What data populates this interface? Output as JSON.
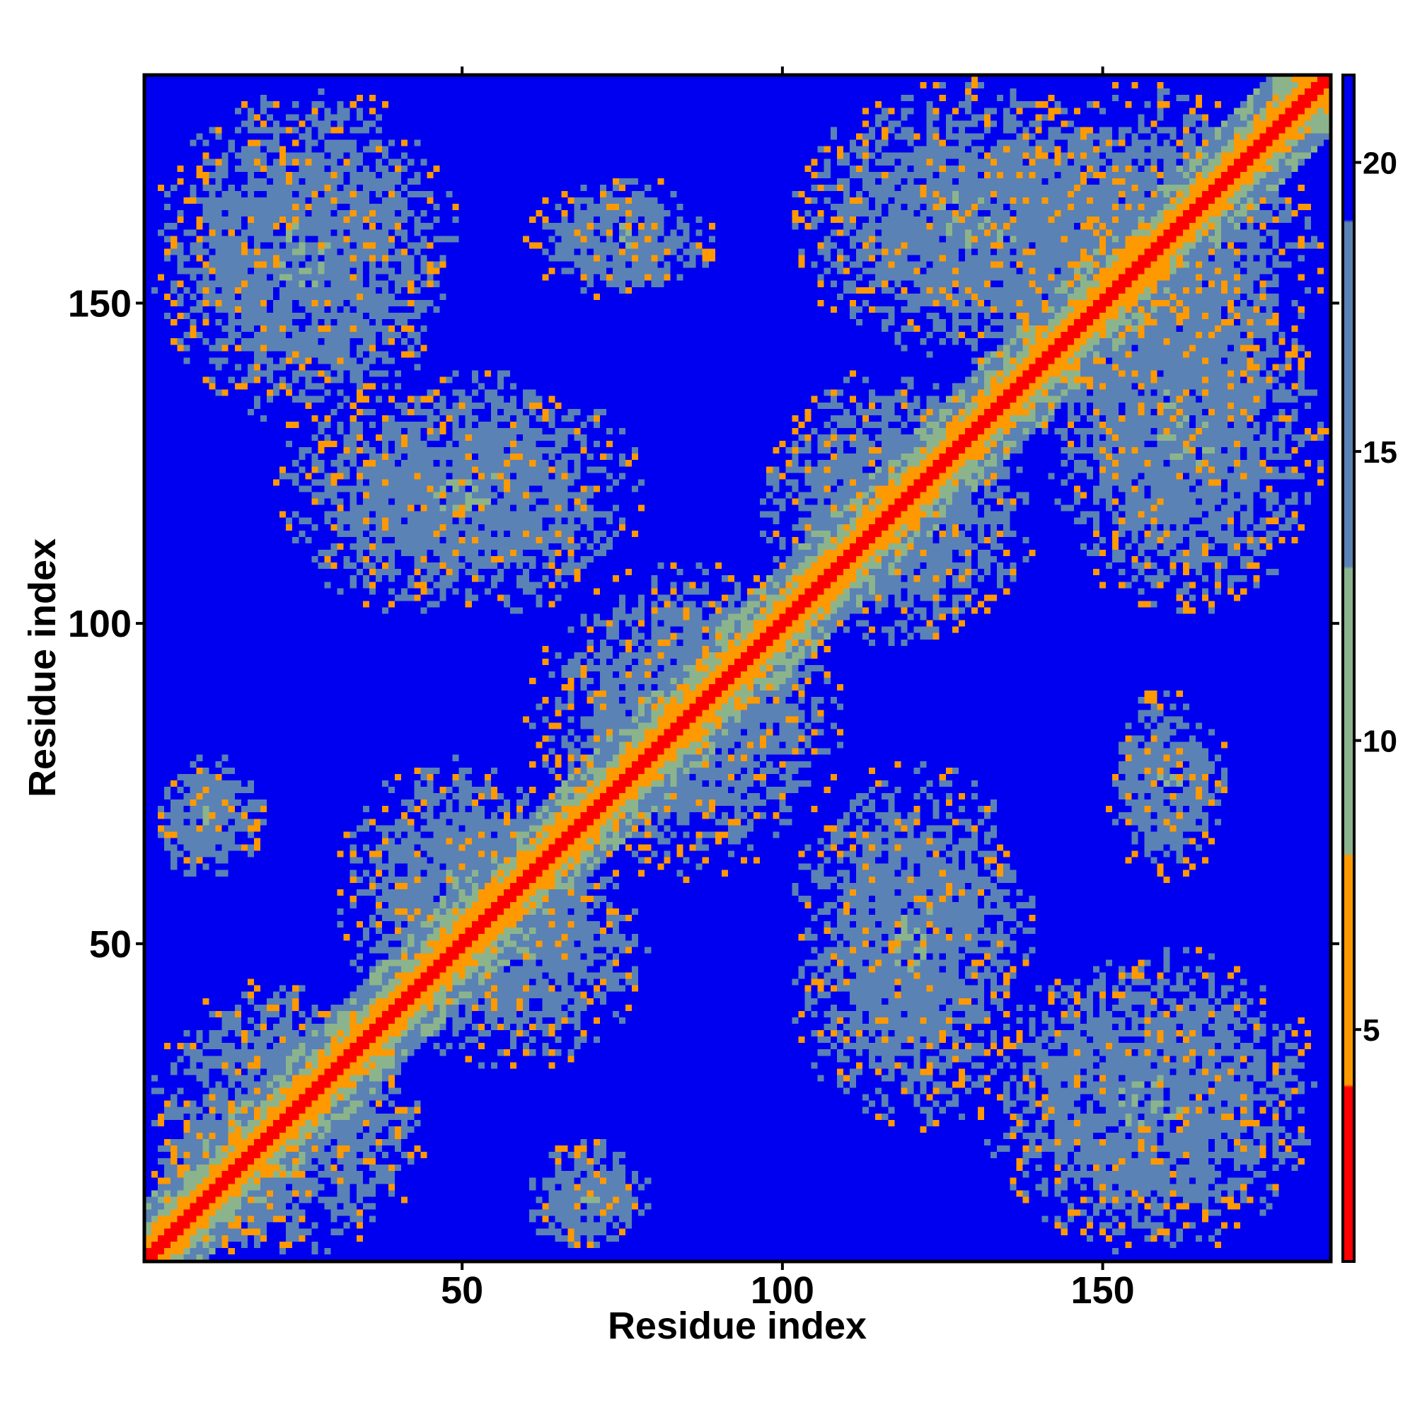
{
  "chart_data": {
    "type": "heatmap",
    "title": "",
    "xlabel": "Residue index",
    "ylabel": "Residue index",
    "n_residues": 185,
    "xlim": [
      1,
      185
    ],
    "ylim": [
      1,
      185
    ],
    "x_ticks": [
      50,
      100,
      150
    ],
    "y_ticks": [
      50,
      100,
      150
    ],
    "x_tick_labels": [
      "50",
      "100",
      "150"
    ],
    "y_tick_labels": [
      "50",
      "100",
      "150"
    ],
    "colorbar": {
      "range": [
        1,
        21.5
      ],
      "ticks": [
        5,
        10,
        15,
        20
      ],
      "tick_labels": [
        "5",
        "10",
        "15",
        "20"
      ],
      "placement": "right"
    },
    "colors": {
      "near": "#ff0000",
      "mid": "#ff9900",
      "far": "#8cb48c",
      "farther": "#5a82b4",
      "background": "#0000f0",
      "axis": "#000000"
    },
    "diagonal_band": {
      "from": 1,
      "to": 185,
      "description_values": "distance near 0-5 along the main diagonal"
    },
    "contact_regions": [
      {
        "x": [
          1,
          25
        ],
        "y": [
          1,
          25
        ]
      },
      {
        "x": [
          1,
          40
        ],
        "y": [
          1,
          45
        ]
      },
      {
        "x": [
          30,
          70
        ],
        "y": [
          35,
          80
        ]
      },
      {
        "x": [
          60,
          110
        ],
        "y": [
          60,
          110
        ]
      },
      {
        "x": [
          85,
          105
        ],
        "y": [
          85,
          105
        ]
      },
      {
        "x": [
          95,
          140
        ],
        "y": [
          95,
          140
        ]
      },
      {
        "x": [
          130,
          185
        ],
        "y": [
          130,
          185
        ]
      },
      {
        "x": [
          1,
          50
        ],
        "y": [
          130,
          185
        ]
      },
      {
        "x": [
          130,
          185
        ],
        "y": [
          1,
          50
        ]
      },
      {
        "x": [
          60,
          90
        ],
        "y": [
          150,
          170
        ]
      },
      {
        "x": [
          150,
          170
        ],
        "y": [
          60,
          90
        ]
      },
      {
        "x": [
          100,
          140
        ],
        "y": [
          20,
          80
        ]
      },
      {
        "x": [
          20,
          80
        ],
        "y": [
          100,
          140
        ]
      },
      {
        "x": [
          100,
          160
        ],
        "y": [
          140,
          185
        ]
      },
      {
        "x": [
          140,
          185
        ],
        "y": [
          100,
          160
        ]
      },
      {
        "x": [
          1,
          20
        ],
        "y": [
          60,
          80
        ]
      },
      {
        "x": [
          60,
          80
        ],
        "y": [
          1,
          20
        ]
      }
    ]
  }
}
